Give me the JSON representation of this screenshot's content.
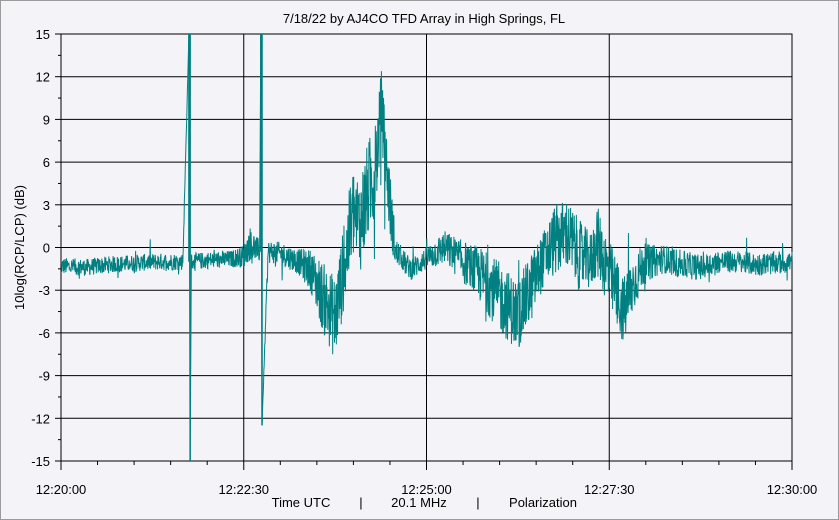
{
  "chart_data": {
    "type": "line",
    "title": "7/18/22  by  AJ4CO TFD Array  in  High Springs, FL",
    "ylabel": "10log(RCP/LCP) (dB)",
    "xlabel_parts": [
      "Time UTC",
      "|",
      "20.1 MHz",
      "|",
      "Polarization"
    ],
    "ylim": [
      -15,
      15
    ],
    "yticks": [
      15,
      12,
      9,
      6,
      3,
      0,
      -3,
      -6,
      -9,
      -12,
      -15
    ],
    "ytick_labels": [
      "15",
      "12",
      "9",
      "6",
      "3",
      "0",
      "-3",
      "-6",
      "-9",
      "-12",
      "-15"
    ],
    "xlim_seconds": [
      0,
      600
    ],
    "xticks_seconds": [
      0,
      150,
      300,
      450,
      600
    ],
    "xtick_labels": [
      "12:20:00",
      "12:22:30",
      "12:25:00",
      "12:27:30",
      "12:30:00"
    ],
    "grid": true,
    "series_color": "#008080",
    "series": [
      {
        "x_seconds": [
          0,
          20,
          40,
          60,
          80,
          100,
          105,
          106,
          107,
          120,
          140,
          150,
          155,
          163,
          164,
          165,
          170,
          180,
          195,
          205,
          215,
          225,
          232,
          240,
          245,
          252,
          258,
          263,
          270,
          275,
          278,
          283,
          288,
          293,
          296,
          300,
          305,
          315,
          330,
          345,
          360,
          375,
          385,
          395,
          405,
          415,
          425,
          435,
          440,
          448,
          455,
          462,
          470,
          478,
          485,
          495,
          510,
          525,
          540,
          555,
          570,
          585,
          600
        ],
        "y_db": [
          -1.3,
          -1.4,
          -1.2,
          -1.1,
          -1.0,
          -1.0,
          15,
          -15,
          -1.0,
          -0.9,
          -0.8,
          -0.6,
          0.3,
          -0.3,
          15,
          -12.5,
          -0.3,
          -0.4,
          -1.0,
          -1.6,
          -3.5,
          -5.0,
          -1.5,
          2.5,
          1.5,
          4.0,
          5.5,
          10.0,
          3.0,
          -0.5,
          -0.5,
          -1.2,
          -1.5,
          -1.2,
          -1.0,
          -0.8,
          -0.5,
          0.0,
          -1.0,
          -2.0,
          -3.5,
          -4.8,
          -3.0,
          -1.0,
          0.5,
          1.0,
          -0.5,
          -1.0,
          0.5,
          -1.5,
          -3.0,
          -4.5,
          -2.5,
          -1.2,
          -1.0,
          -0.8,
          -1.2,
          -1.4,
          -1.0,
          -1.0,
          -1.2,
          -1.1,
          -1.0
        ],
        "noise_db": [
          0.6,
          0.6,
          0.6,
          0.6,
          0.6,
          0.6,
          0,
          0,
          0.6,
          0.6,
          0.6,
          0.8,
          1.2,
          0.8,
          0,
          0,
          0.8,
          0.8,
          0.9,
          1.5,
          2.5,
          3.0,
          3.0,
          3.5,
          3.5,
          3.5,
          3.5,
          2.5,
          2.5,
          1.2,
          0.8,
          0.8,
          0.8,
          0.8,
          0.8,
          0.8,
          1.0,
          1.2,
          1.5,
          2.0,
          2.5,
          2.5,
          2.5,
          2.0,
          2.5,
          2.5,
          2.5,
          2.0,
          2.5,
          2.5,
          2.5,
          2.5,
          2.0,
          1.5,
          1.2,
          1.0,
          1.0,
          0.9,
          0.8,
          0.8,
          0.8,
          0.8,
          0.8
        ]
      }
    ]
  }
}
